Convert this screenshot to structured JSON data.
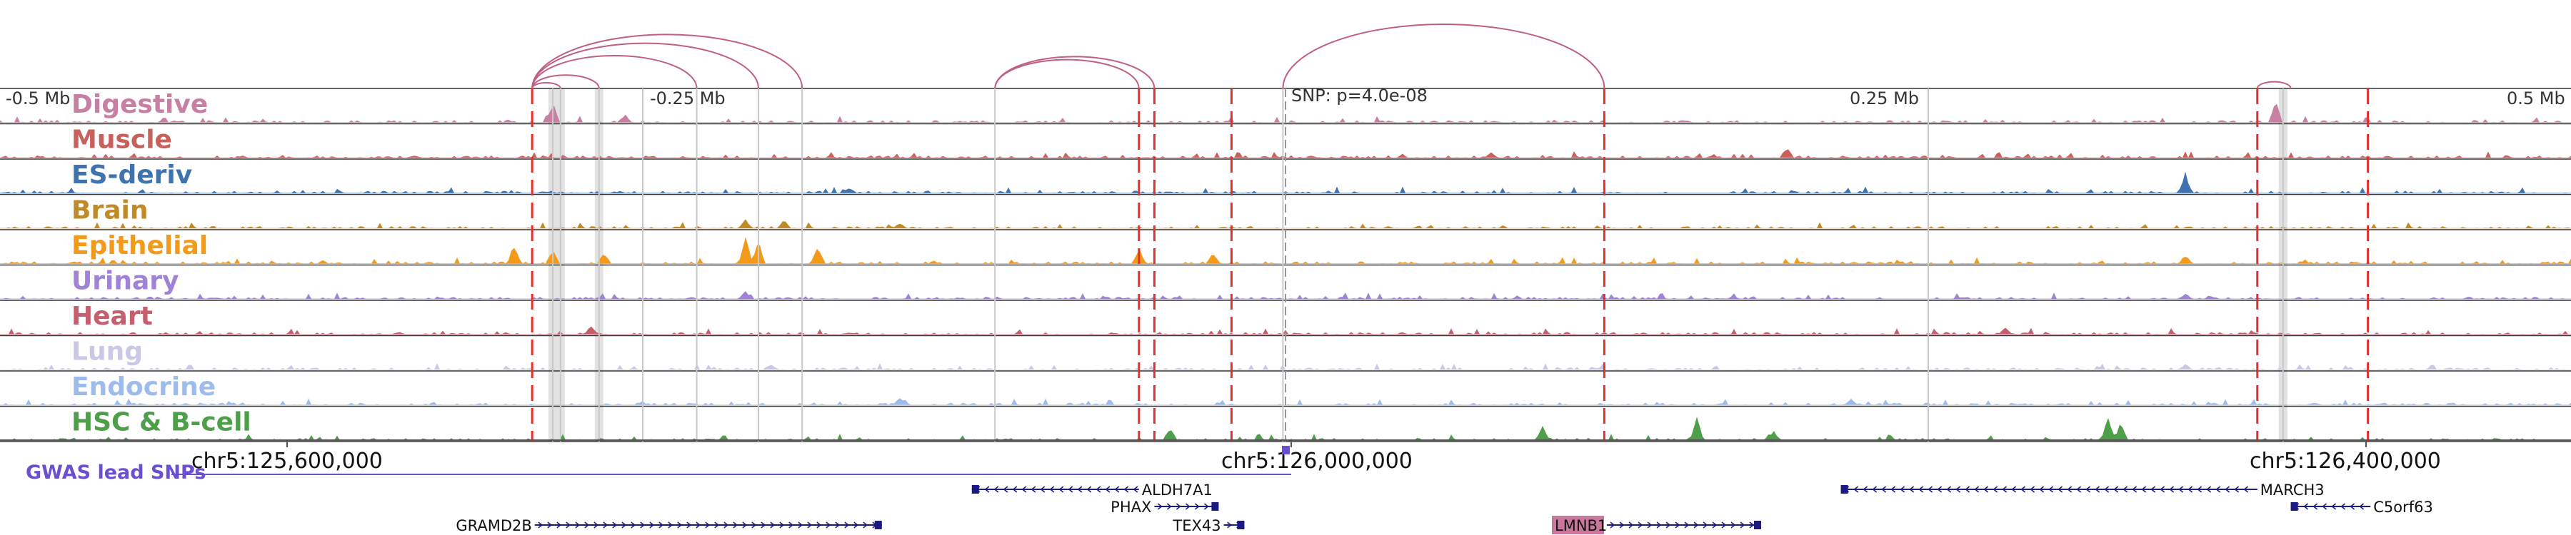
{
  "browser": {
    "offsets": [
      "-0.5 Mb",
      "-0.25 Mb",
      "SNP: p=4.0e-08",
      "0.25 Mb",
      "0.5 Mb"
    ],
    "coordinates": [
      "chr5:125,600,000",
      "chr5:126,000,000",
      "chr5:126,400,000"
    ],
    "gwas_label": "GWAS lead SNPs",
    "colors": {
      "dashed_line": "#e03030",
      "grey_line": "#c8c8c8",
      "arc": "#c06080",
      "gwas": "#6a4fd0",
      "gene": "#1a1a80",
      "highlight_gene_bg": "#c8789c"
    }
  },
  "tracks": [
    {
      "name": "Digestive",
      "color": "#c87fa4",
      "seed": 3,
      "peaks": [
        [
          0.215,
          0.7
        ],
        [
          0.243,
          0.3
        ],
        [
          0.885,
          0.8
        ]
      ]
    },
    {
      "name": "Muscle",
      "color": "#c8605c",
      "seed": 7,
      "peaks": [
        [
          0.695,
          0.4
        ],
        [
          0.58,
          0.2
        ]
      ]
    },
    {
      "name": "ES-deriv",
      "color": "#3f73b0",
      "seed": 11,
      "peaks": [
        [
          0.85,
          0.7
        ],
        [
          0.33,
          0.2
        ]
      ]
    },
    {
      "name": "Brain",
      "color": "#c08a26",
      "seed": 13,
      "peaks": [
        [
          0.29,
          0.3
        ],
        [
          0.305,
          0.3
        ],
        [
          0.35,
          0.2
        ]
      ]
    },
    {
      "name": "Epithelial",
      "color": "#f39a1a",
      "seed": 17,
      "peaks": [
        [
          0.2,
          0.7
        ],
        [
          0.215,
          0.5
        ],
        [
          0.235,
          0.4
        ],
        [
          0.29,
          0.95
        ],
        [
          0.295,
          0.8
        ],
        [
          0.318,
          0.7
        ],
        [
          0.443,
          0.6
        ],
        [
          0.472,
          0.4
        ],
        [
          0.85,
          0.3
        ]
      ]
    },
    {
      "name": "Urinary",
      "color": "#a083d6",
      "seed": 19,
      "peaks": [
        [
          0.29,
          0.3
        ],
        [
          0.85,
          0.2
        ]
      ]
    },
    {
      "name": "Heart",
      "color": "#c65e6e",
      "seed": 23,
      "peaks": [
        [
          0.23,
          0.3
        ],
        [
          0.78,
          0.25
        ]
      ]
    },
    {
      "name": "Lung",
      "color": "#c9c8e6",
      "seed": 29,
      "peaks": [
        [
          0.3,
          0.2
        ],
        [
          0.85,
          0.2
        ]
      ]
    },
    {
      "name": "Endocrine",
      "color": "#9ebceb",
      "seed": 31,
      "peaks": [
        [
          0.35,
          0.3
        ],
        [
          0.72,
          0.2
        ]
      ]
    },
    {
      "name": "HSC & B-cell",
      "color": "#4d9f4a",
      "seed": 37,
      "peaks": [
        [
          0.455,
          0.5
        ],
        [
          0.6,
          0.5
        ],
        [
          0.66,
          0.8
        ],
        [
          0.82,
          0.9
        ],
        [
          0.825,
          0.7
        ],
        [
          0.69,
          0.3
        ]
      ]
    }
  ],
  "genes": [
    {
      "name": "ALDH7A1",
      "strand": "-",
      "row": 0,
      "start": 0.378,
      "end": 0.443,
      "label_side": "right"
    },
    {
      "name": "PHAX",
      "strand": "+",
      "row": 1,
      "start": 0.449,
      "end": 0.474,
      "label_side": "left"
    },
    {
      "name": "TEX43",
      "strand": "+",
      "row": 2,
      "start": 0.476,
      "end": 0.484,
      "label_side": "left"
    },
    {
      "name": "GRAMD2B",
      "strand": "+",
      "row": 2,
      "start": 0.208,
      "end": 0.343,
      "label_side": "left"
    },
    {
      "name": "LMNB1",
      "strand": "+",
      "row": 2,
      "start": 0.625,
      "end": 0.685,
      "label_side": "left",
      "highlight": true
    },
    {
      "name": "MARCH3",
      "strand": "-",
      "row": 0,
      "start": 0.716,
      "end": 0.878,
      "label_side": "right"
    },
    {
      "name": "C5orf63",
      "strand": "-",
      "row": 1,
      "start": 0.891,
      "end": 0.922,
      "label_side": "right"
    }
  ],
  "dashed_lines": [
    0.207,
    0.443,
    0.449,
    0.479,
    0.624,
    0.878,
    0.921
  ],
  "grey_lines": [
    0.215,
    0.218,
    0.233,
    0.25,
    0.271,
    0.295,
    0.312,
    0.387,
    0.499,
    0.75,
    0.888
  ],
  "arcs": [
    [
      0.207,
      0.218
    ],
    [
      0.207,
      0.233
    ],
    [
      0.207,
      0.271
    ],
    [
      0.207,
      0.295
    ],
    [
      0.207,
      0.312
    ],
    [
      0.387,
      0.443
    ],
    [
      0.387,
      0.449
    ],
    [
      0.499,
      0.624
    ],
    [
      0.878,
      0.891
    ]
  ],
  "highlight_bands": [
    0.215,
    0.218,
    0.233,
    0.888
  ],
  "gwas_snp": 0.5
}
